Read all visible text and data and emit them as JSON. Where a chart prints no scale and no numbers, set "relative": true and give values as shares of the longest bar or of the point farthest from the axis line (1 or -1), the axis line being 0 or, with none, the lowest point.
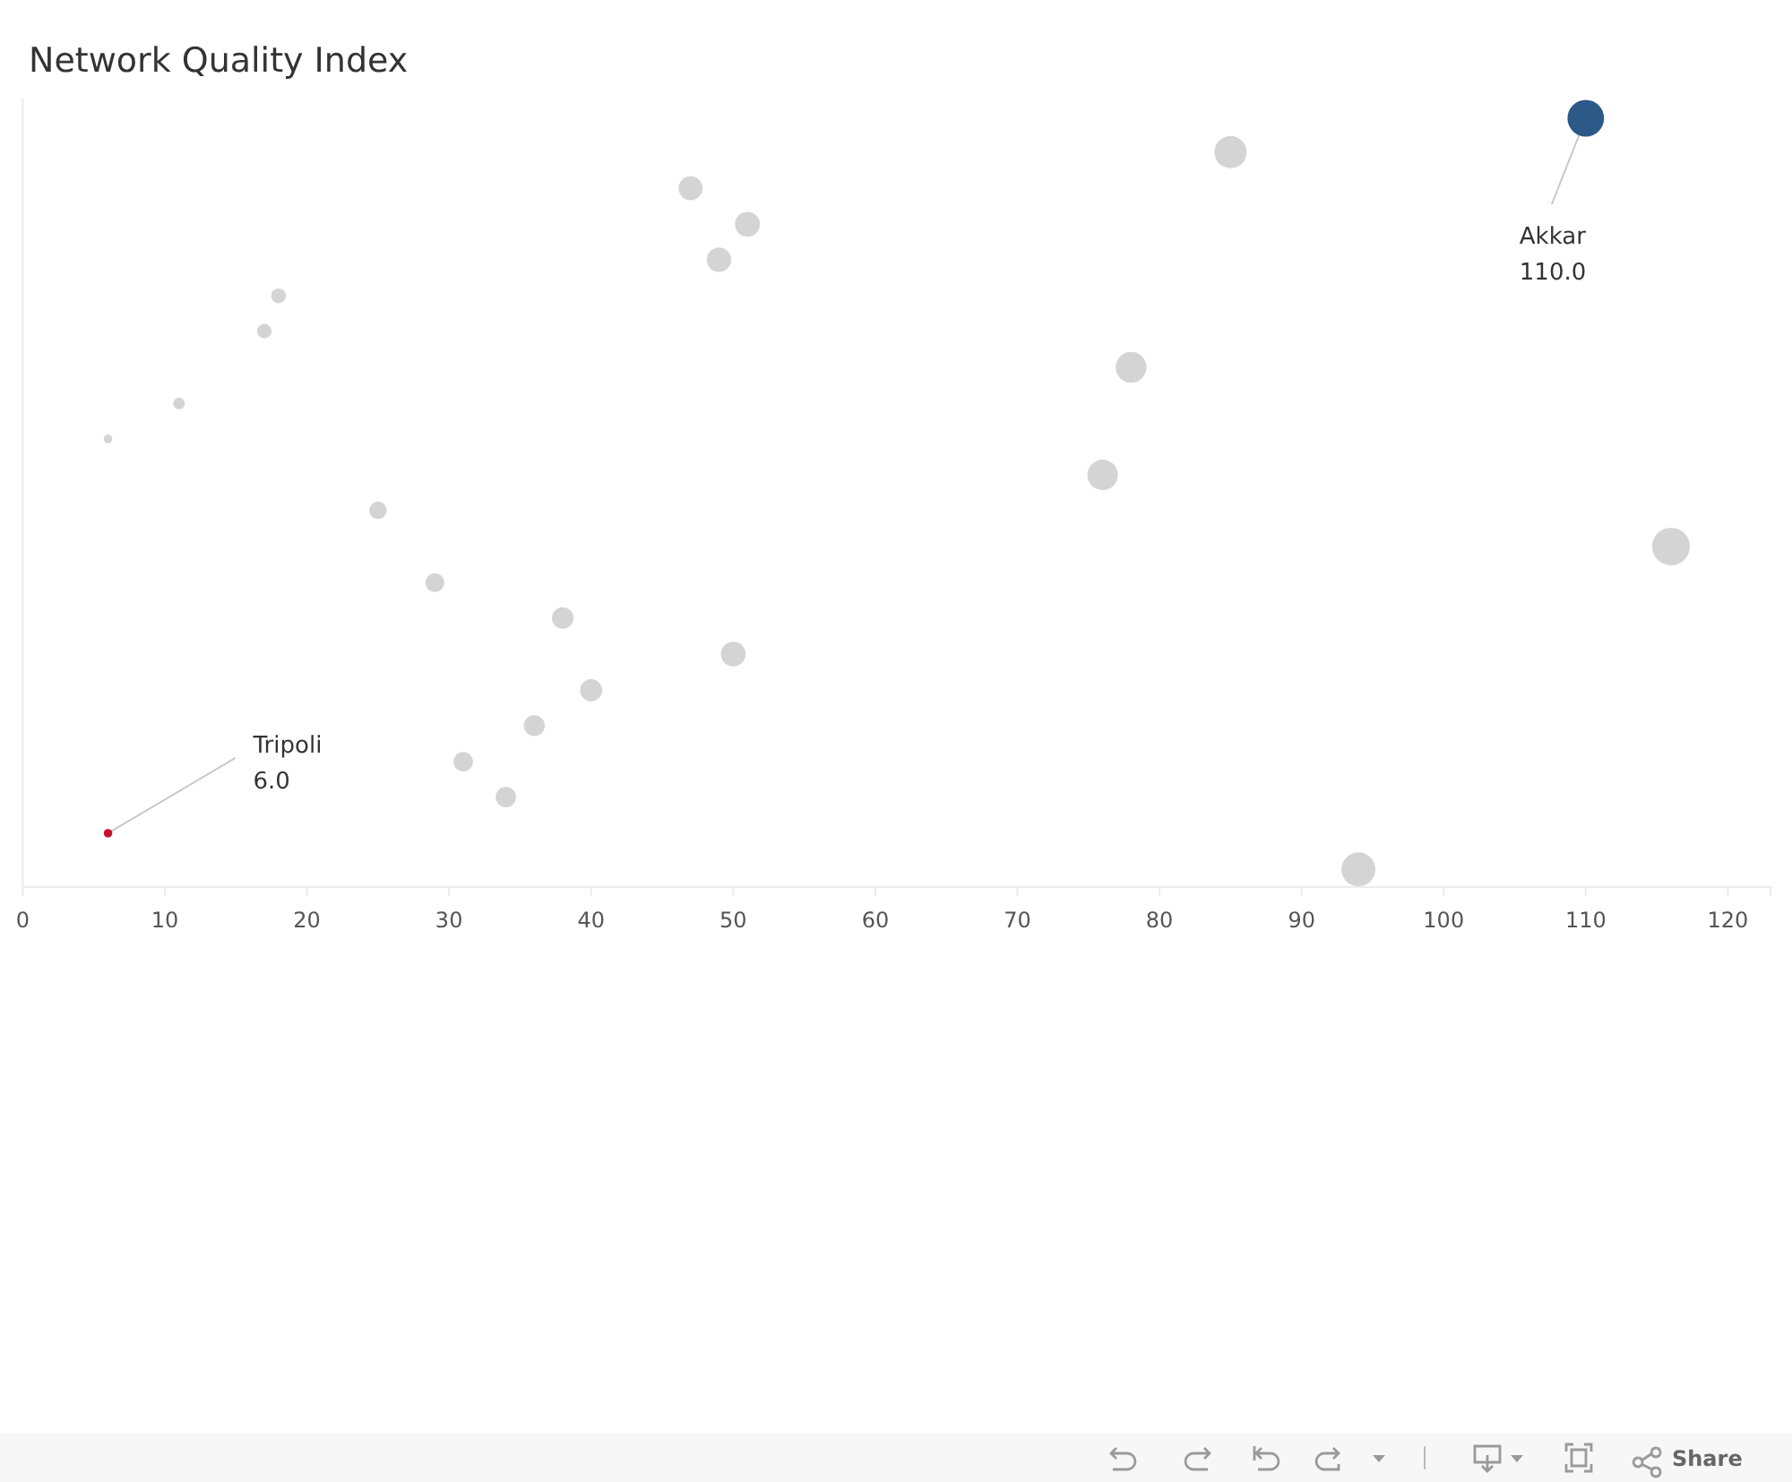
{
  "chart_data": {
    "type": "bubble",
    "title": "Network Quality Index",
    "relative": true,
    "x": [
      6,
      6,
      11,
      17,
      18,
      25,
      29,
      31,
      34,
      36,
      38,
      40,
      47,
      49,
      50,
      51,
      76,
      78,
      85,
      94,
      110,
      116
    ],
    "values": [
      0.07,
      0.583,
      0.629,
      0.723,
      0.769,
      0.49,
      0.396,
      0.163,
      0.117,
      0.21,
      0.35,
      0.256,
      0.909,
      0.816,
      0.303,
      0.862,
      0.536,
      0.676,
      0.956,
      0.023,
      1,
      0.443
    ],
    "sizes": [
      0.052,
      0.052,
      0.095,
      0.147,
      0.155,
      0.216,
      0.25,
      0.267,
      0.293,
      0.31,
      0.328,
      0.345,
      0.405,
      0.422,
      0.431,
      0.44,
      0.655,
      0.672,
      0.733,
      0.81,
      0.948,
      1
    ],
    "colors": [
      "#c8102e",
      "#d4d4d4",
      "#d4d4d4",
      "#d4d4d4",
      "#d4d4d4",
      "#d4d4d4",
      "#d4d4d4",
      "#d4d4d4",
      "#d4d4d4",
      "#d4d4d4",
      "#d4d4d4",
      "#d4d4d4",
      "#d4d4d4",
      "#d4d4d4",
      "#d4d4d4",
      "#d4d4d4",
      "#d4d4d4",
      "#d4d4d4",
      "#d4d4d4",
      "#d4d4d4",
      "#2d5988",
      "#d4d4d4"
    ],
    "xlim": [
      0,
      123
    ],
    "xticks": [
      0,
      10,
      20,
      30,
      40,
      50,
      60,
      70,
      80,
      90,
      100,
      110,
      120
    ],
    "annotations": [
      {
        "text": "Tripoli\n6.0",
        "x": 6,
        "y": 0.07
      },
      {
        "text": "Akkar\n110.0",
        "x": 110,
        "y": 1
      },
      "Share"
    ]
  }
}
